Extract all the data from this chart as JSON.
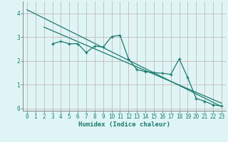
{
  "title": "",
  "xlabel": "Humidex (Indice chaleur)",
  "bg_color": "#dff5f5",
  "grid_color": "#c8b8b8",
  "line_color": "#1a7a6e",
  "xlim": [
    -0.5,
    23.5
  ],
  "ylim": [
    -0.1,
    4.5
  ],
  "yticks": [
    0,
    1,
    2,
    3,
    4
  ],
  "xticks": [
    0,
    1,
    2,
    3,
    4,
    5,
    6,
    7,
    8,
    9,
    10,
    11,
    12,
    13,
    14,
    15,
    16,
    17,
    18,
    19,
    20,
    21,
    22,
    23
  ],
  "line1_x": [
    0,
    23
  ],
  "line1_y": [
    4.15,
    0.08
  ],
  "line2_x": [
    2,
    23
  ],
  "line2_y": [
    3.42,
    0.22
  ],
  "line3_x": [
    3,
    4,
    5,
    6,
    7,
    8,
    9,
    10,
    11,
    12,
    13,
    14,
    15,
    16,
    17,
    18,
    19,
    20,
    21,
    22,
    23
  ],
  "line3_y": [
    2.72,
    2.82,
    2.72,
    2.72,
    2.35,
    2.62,
    2.58,
    3.02,
    3.08,
    2.08,
    1.63,
    1.55,
    1.5,
    1.48,
    1.43,
    2.08,
    1.3,
    0.42,
    0.3,
    0.15,
    0.1
  ]
}
